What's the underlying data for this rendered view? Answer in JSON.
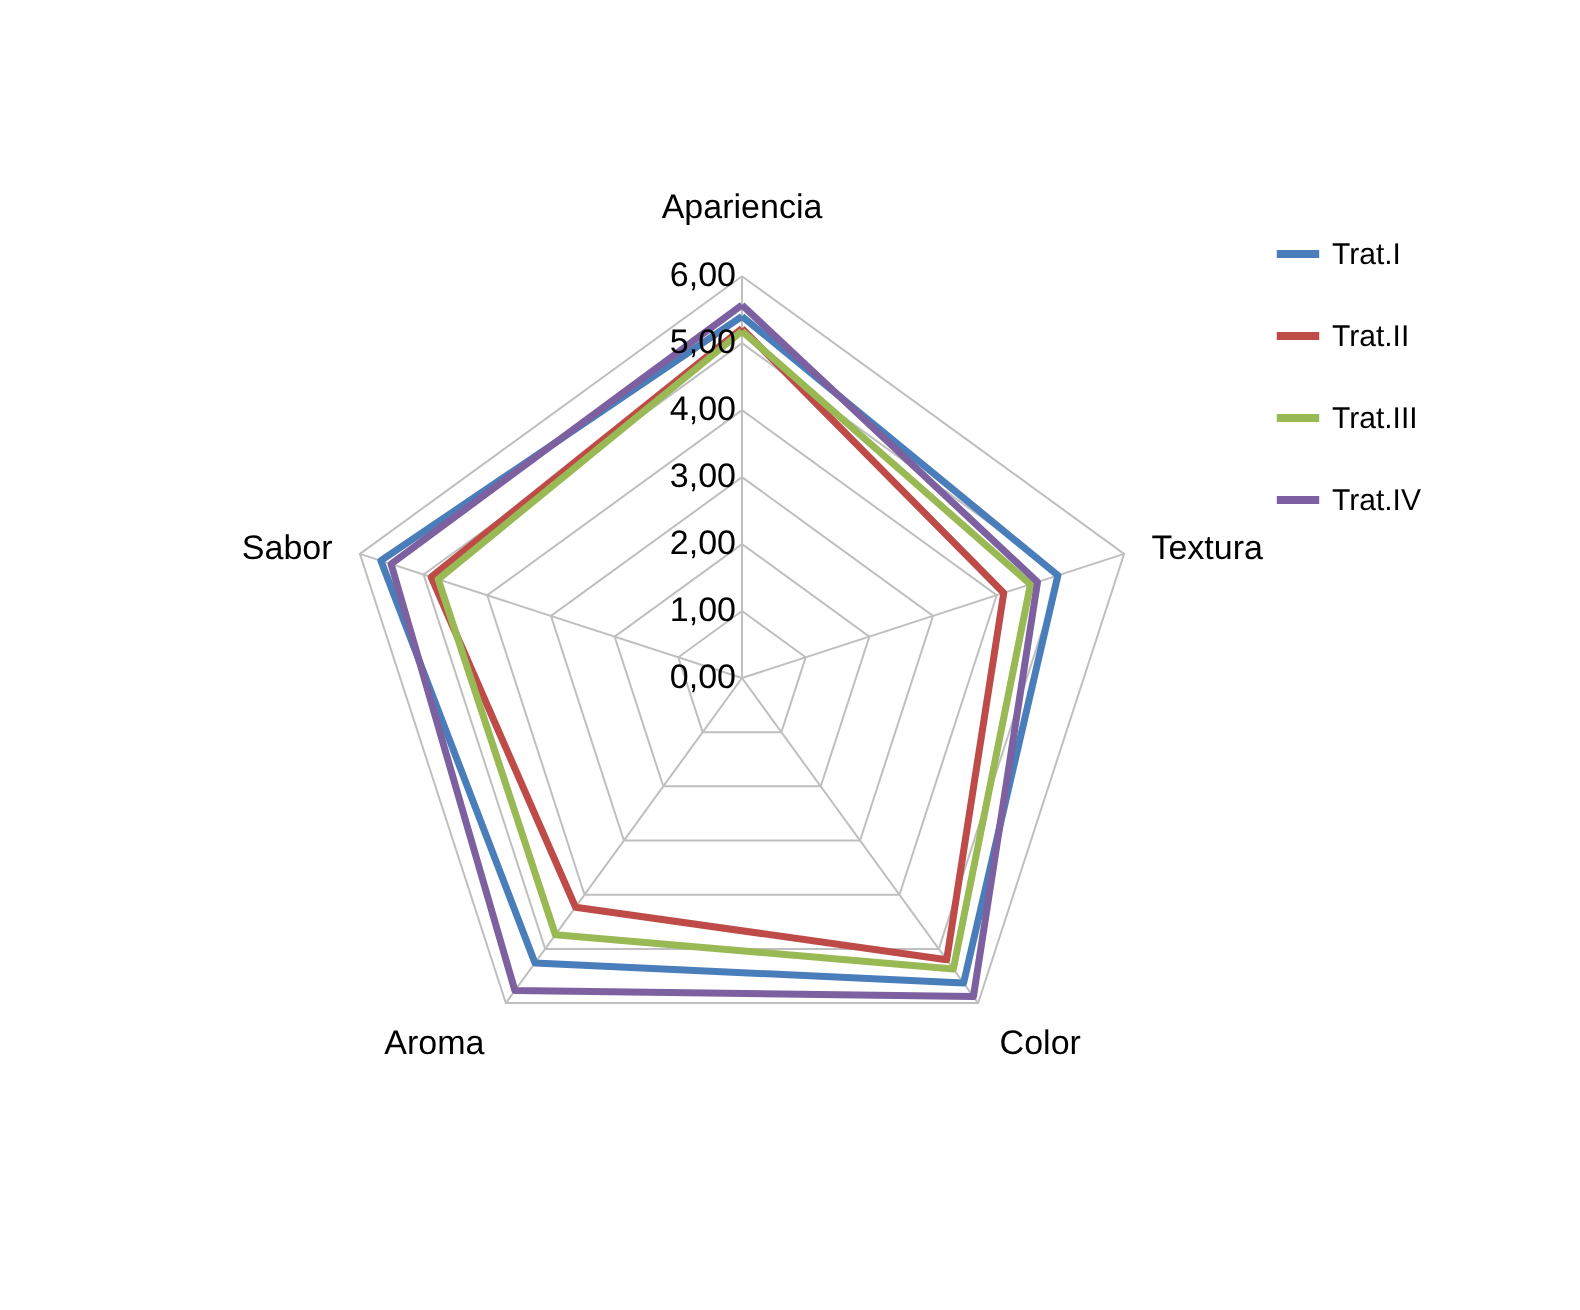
{
  "chart_data": {
    "type": "radar",
    "categories": [
      "Apariencia",
      "Textura",
      "Color",
      "Aroma",
      "Sabor"
    ],
    "series": [
      {
        "name": "Trat.I",
        "color": "#4a7ebb",
        "values": [
          5.4,
          4.96,
          5.63,
          5.26,
          5.67
        ]
      },
      {
        "name": "Trat.II",
        "color": "#be4b48",
        "values": [
          5.22,
          4.11,
          5.2,
          4.23,
          4.88
        ]
      },
      {
        "name": "Trat.III",
        "color": "#98b954",
        "values": [
          5.18,
          4.53,
          5.37,
          4.74,
          4.77
        ]
      },
      {
        "name": "Trat.IV",
        "color": "#7d60a0",
        "values": [
          5.57,
          4.64,
          5.88,
          5.77,
          5.51
        ]
      }
    ],
    "ylim": [
      0,
      6
    ],
    "yticks": [
      {
        "value": 0,
        "label": "0,00"
      },
      {
        "value": 1,
        "label": "1,00"
      },
      {
        "value": 2,
        "label": "2,00"
      },
      {
        "value": 3,
        "label": "3,00"
      },
      {
        "value": 4,
        "label": "4,00"
      },
      {
        "value": 5,
        "label": "5,00"
      },
      {
        "value": 6,
        "label": "6,00"
      }
    ],
    "grid": true,
    "legend": "right",
    "line_style": "solid",
    "marker": "none"
  }
}
